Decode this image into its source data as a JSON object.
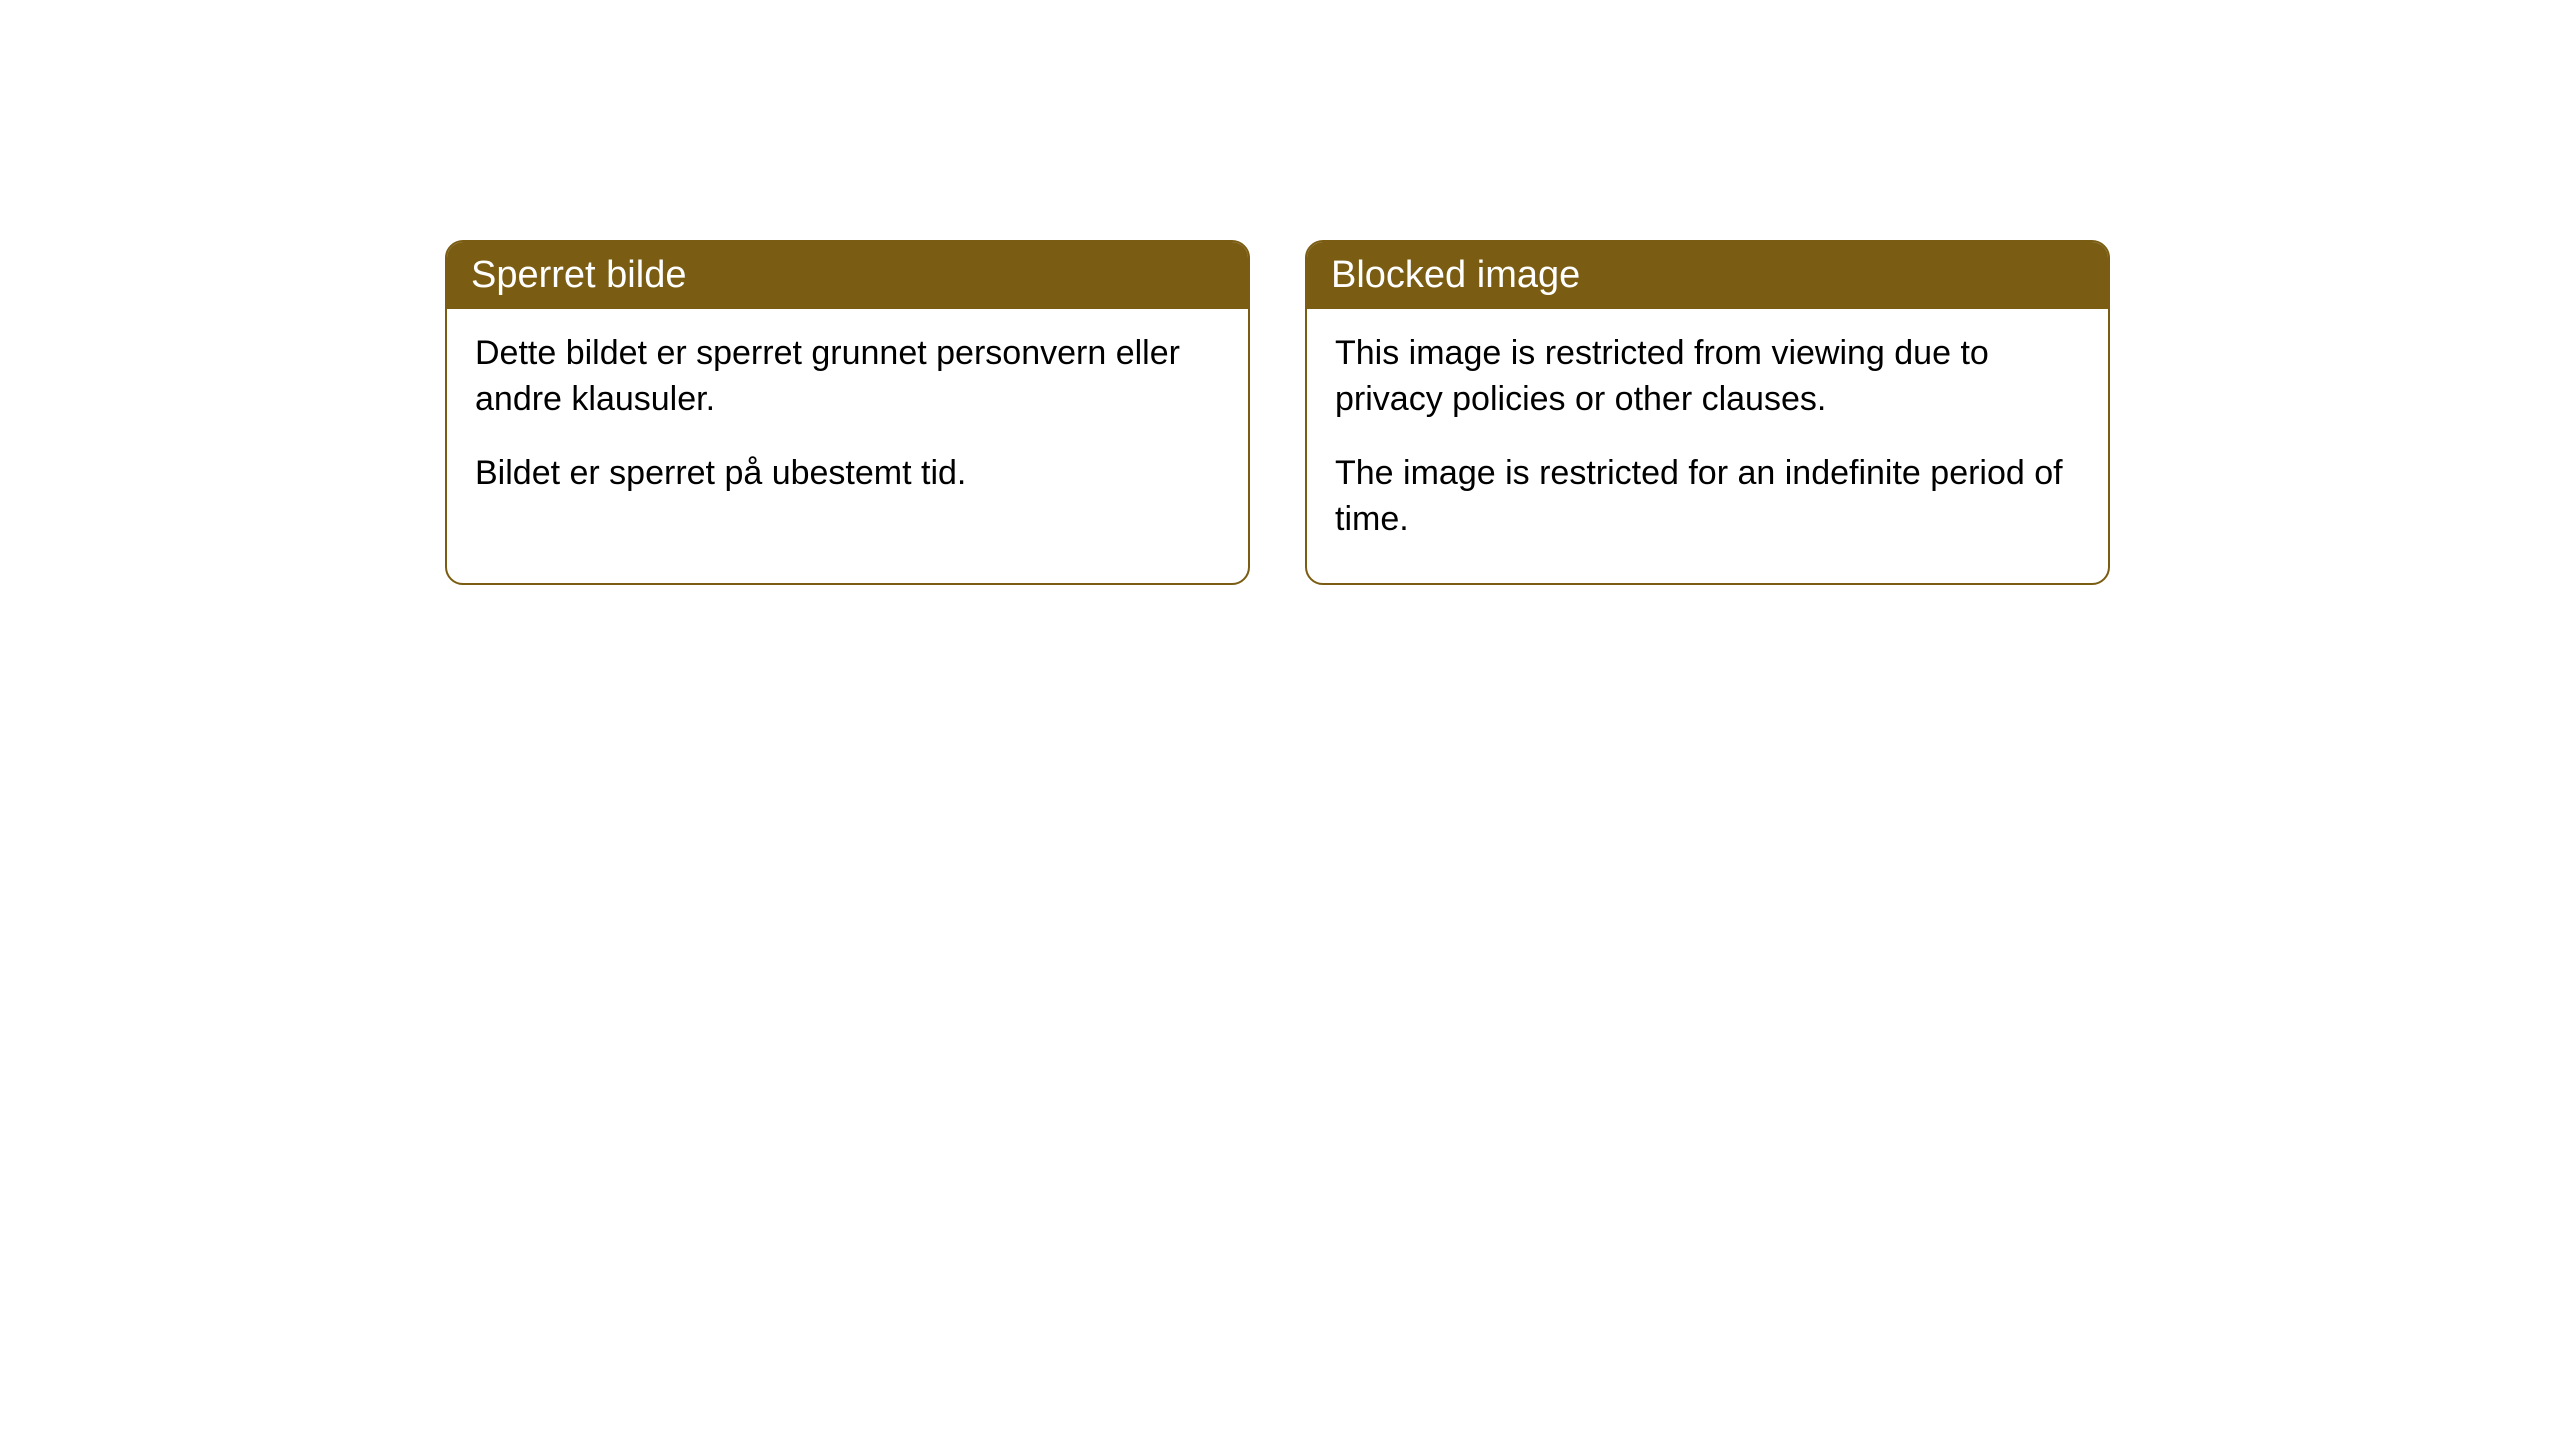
{
  "boxes": [
    {
      "title": "Sperret bilde",
      "paragraph1": "Dette bildet er sperret grunnet personvern eller andre klausuler.",
      "paragraph2": "Bildet er sperret på ubestemt tid."
    },
    {
      "title": "Blocked image",
      "paragraph1": "This image is restricted from viewing due to privacy policies or other clauses.",
      "paragraph2": "The image is restricted for an indefinite period of time."
    }
  ],
  "styling": {
    "header_background_color": "#7a5c12",
    "header_text_color": "#ffffff",
    "border_color": "#7a5c12",
    "body_background_color": "#ffffff",
    "body_text_color": "#000000",
    "border_radius": 18,
    "header_fontsize": 38,
    "body_fontsize": 34
  }
}
